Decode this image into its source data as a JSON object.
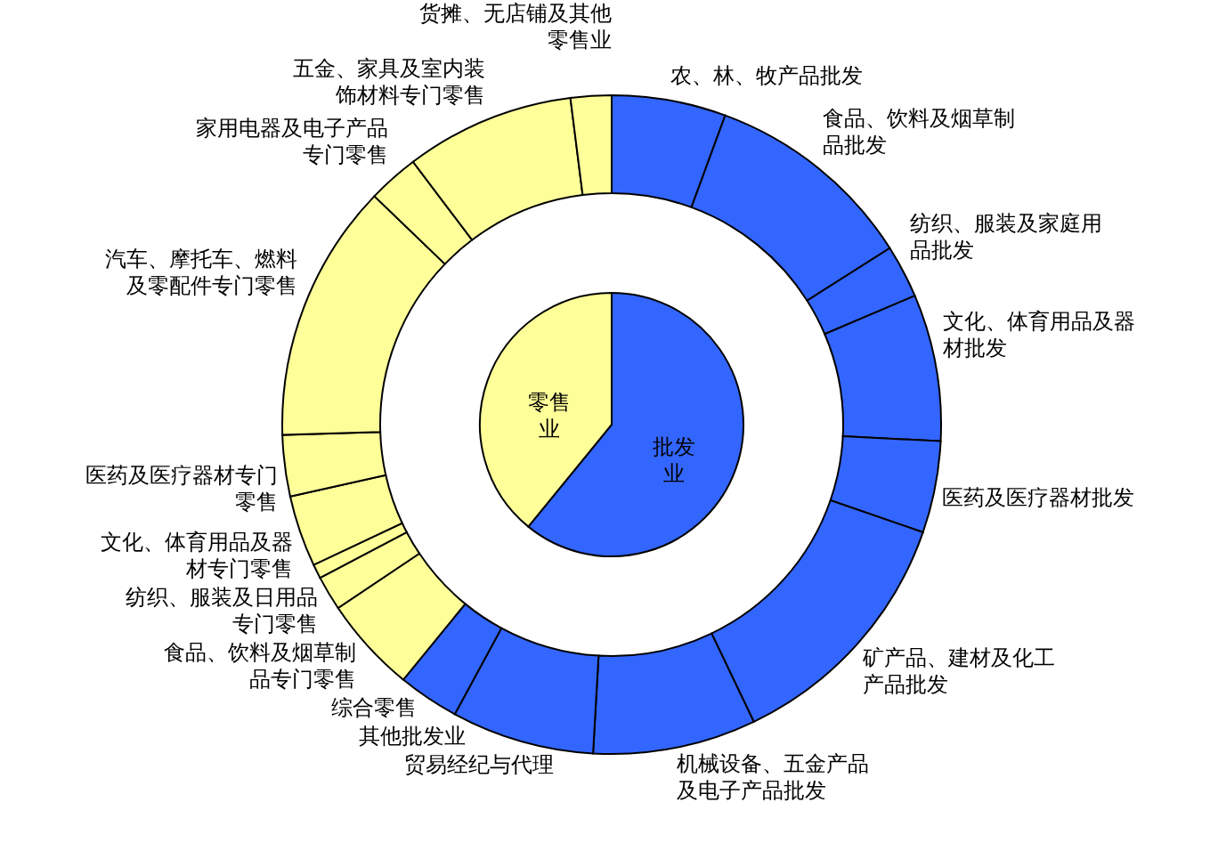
{
  "chart_data": [
    {
      "type": "pie",
      "categories": [
        "批发业",
        "零售业"
      ],
      "values": [
        60.9,
        39.1
      ],
      "colors": [
        "#3366ff",
        "#ffff99"
      ]
    },
    {
      "type": "donut",
      "categories": [
        "农、林、牧产品批发",
        "食品、饮料及烟草制品批发",
        "纺织、服装及家庭用品批发",
        "文化、体育用品及器材批发",
        "医药及医疗器材批发",
        "矿产品、建材及化工产品批发",
        "机械设备、五金产品及电子产品批发",
        "贸易经纪与代理",
        "其他批发业",
        "综合零售",
        "食品、饮料及烟草制品专门零售",
        "纺织、服装及日用品专门零售",
        "文化、体育用品及器材专门零售",
        "医药及医疗器材专门零售",
        "汽车、摩托车、燃料及零配件专门零售",
        "家用电器及电子产品专门零售",
        "五金、家具及室内装饰材料专门零售",
        "货摊、无店铺及其他零售业"
      ],
      "values": [
        5.6,
        10.4,
        2.6,
        7.2,
        4.5,
        12.6,
        8.0,
        7.0,
        3.0,
        4.7,
        1.7,
        0.7,
        3.5,
        3.0,
        12.7,
        2.5,
        8.3,
        2.0
      ],
      "colors": [
        "#3366ff",
        "#3366ff",
        "#3366ff",
        "#3366ff",
        "#3366ff",
        "#3366ff",
        "#3366ff",
        "#3366ff",
        "#3366ff",
        "#ffff99",
        "#ffff99",
        "#ffff99",
        "#ffff99",
        "#ffff99",
        "#ffff99",
        "#ffff99",
        "#ffff99",
        "#ffff99"
      ]
    }
  ]
}
